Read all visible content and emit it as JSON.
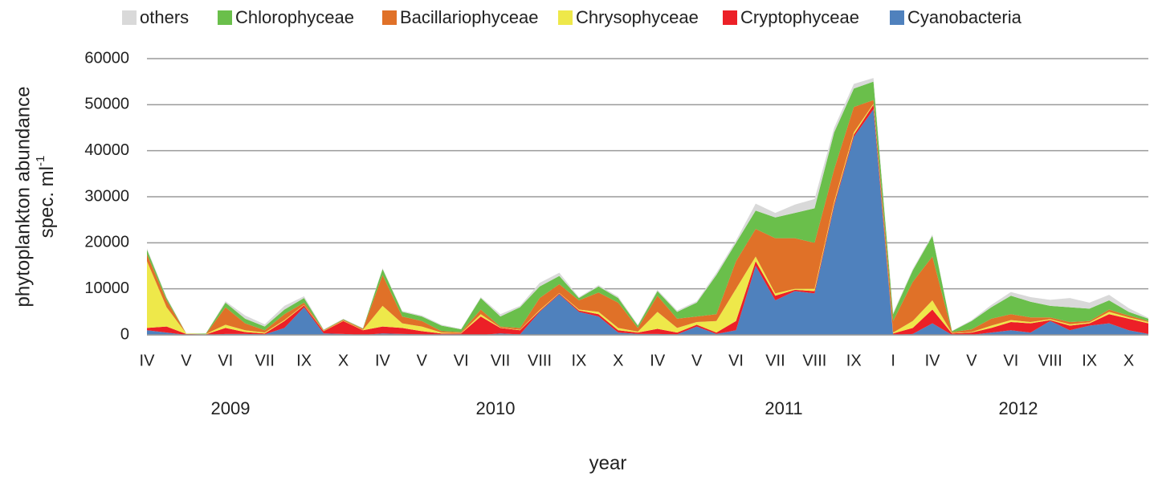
{
  "chart_data": {
    "type": "stacked_area",
    "ylabel": "phytoplankton abundance",
    "ylabel_unit": "spec. ml",
    "ylabel_unit_exponent": "-1",
    "xlabel": "year",
    "year_groups": [
      "2009",
      "2010",
      "2011",
      "2012"
    ],
    "categories": [
      "IV",
      null,
      "V",
      null,
      "VI",
      null,
      "VII",
      null,
      "IX",
      null,
      "X",
      null,
      "IV",
      null,
      "V",
      null,
      "VI",
      null,
      "VII",
      null,
      "VIII",
      null,
      "IX",
      null,
      "X",
      null,
      "IV",
      null,
      "V",
      null,
      "VI",
      null,
      "VII",
      null,
      "VIII",
      null,
      "IX",
      null,
      "I",
      null,
      "IV",
      null,
      "V",
      null,
      "VI",
      null,
      "VIII",
      null,
      "IX",
      null,
      "X",
      null
    ],
    "ylim": [
      0,
      60000
    ],
    "yticks": [
      0,
      10000,
      20000,
      30000,
      40000,
      50000,
      60000
    ],
    "grid": true,
    "legend": "top",
    "series": [
      {
        "name": "others",
        "color": "#d9d9d9",
        "values": [
          300,
          200,
          100,
          0,
          300,
          700,
          500,
          800,
          400,
          100,
          100,
          100,
          200,
          200,
          200,
          200,
          100,
          200,
          500,
          300,
          800,
          700,
          200,
          300,
          300,
          200,
          300,
          300,
          300,
          500,
          500,
          1500,
          1000,
          1800,
          2000,
          1000,
          1000,
          800,
          300,
          300,
          300,
          100,
          200,
          500,
          800,
          1000,
          1300,
          2000,
          1300,
          1200,
          800,
          200
        ]
      },
      {
        "name": "Chlorophyceae",
        "color": "#6abf4b",
        "values": [
          1000,
          500,
          0,
          100,
          1000,
          1000,
          800,
          1000,
          1000,
          100,
          100,
          100,
          1300,
          1000,
          1000,
          1200,
          600,
          2500,
          2200,
          4500,
          2500,
          1800,
          500,
          1300,
          1000,
          500,
          1000,
          1500,
          3000,
          8500,
          4000,
          4000,
          4500,
          5500,
          7500,
          8000,
          4000,
          4000,
          1500,
          2500,
          4500,
          200,
          1800,
          2500,
          4000,
          3400,
          2500,
          3200,
          2700,
          2000,
          800,
          500
        ]
      },
      {
        "name": "Bacillariophyceae",
        "color": "#e07128",
        "values": [
          1500,
          1500,
          0,
          0,
          3800,
          1500,
          500,
          1300,
          500,
          100,
          200,
          200,
          6700,
          1500,
          1200,
          300,
          200,
          1000,
          200,
          400,
          2600,
          1900,
          2000,
          4200,
          5500,
          800,
          3500,
          2000,
          1200,
          1500,
          6000,
          6000,
          12000,
          11000,
          10000,
          7000,
          5500,
          800,
          2500,
          8500,
          9500,
          200,
          600,
          1500,
          1300,
          1000,
          400,
          500,
          300,
          500,
          400,
          200
        ]
      },
      {
        "name": "Chrysophyceae",
        "color": "#eee84a",
        "values": [
          14500,
          4200,
          100,
          100,
          700,
          400,
          200,
          200,
          100,
          100,
          100,
          100,
          4500,
          1000,
          1000,
          200,
          100,
          500,
          100,
          100,
          200,
          100,
          200,
          500,
          500,
          200,
          3700,
          1000,
          600,
          2500,
          7000,
          1000,
          500,
          200,
          500,
          500,
          500,
          200,
          200,
          1500,
          2000,
          100,
          100,
          500,
          400,
          300,
          200,
          300,
          200,
          500,
          300,
          300
        ]
      },
      {
        "name": "Cryptophyceae",
        "color": "#ec2027",
        "values": [
          500,
          1300,
          200,
          100,
          1300,
          400,
          200,
          1500,
          400,
          500,
          2800,
          1000,
          1500,
          1300,
          700,
          300,
          300,
          4000,
          1200,
          900,
          200,
          200,
          300,
          500,
          500,
          300,
          1100,
          400,
          400,
          300,
          2000,
          1000,
          1000,
          300,
          500,
          500,
          500,
          1000,
          300,
          1300,
          3000,
          300,
          500,
          1000,
          1800,
          2000,
          200,
          1000,
          500,
          2000,
          2500,
          2300
        ]
      },
      {
        "name": "Cyanobacteria",
        "color": "#4f81bd",
        "values": [
          1000,
          500,
          0,
          0,
          200,
          200,
          100,
          1500,
          6000,
          300,
          200,
          0,
          300,
          200,
          100,
          0,
          0,
          0,
          300,
          100,
          5000,
          8800,
          5000,
          4000,
          500,
          200,
          200,
          100,
          1800,
          200,
          1000,
          15000,
          7500,
          9500,
          9000,
          28000,
          43000,
          49000,
          0,
          200,
          2500,
          0,
          0,
          500,
          1000,
          500,
          3000,
          1000,
          2000,
          2500,
          1000,
          200
        ]
      }
    ]
  }
}
